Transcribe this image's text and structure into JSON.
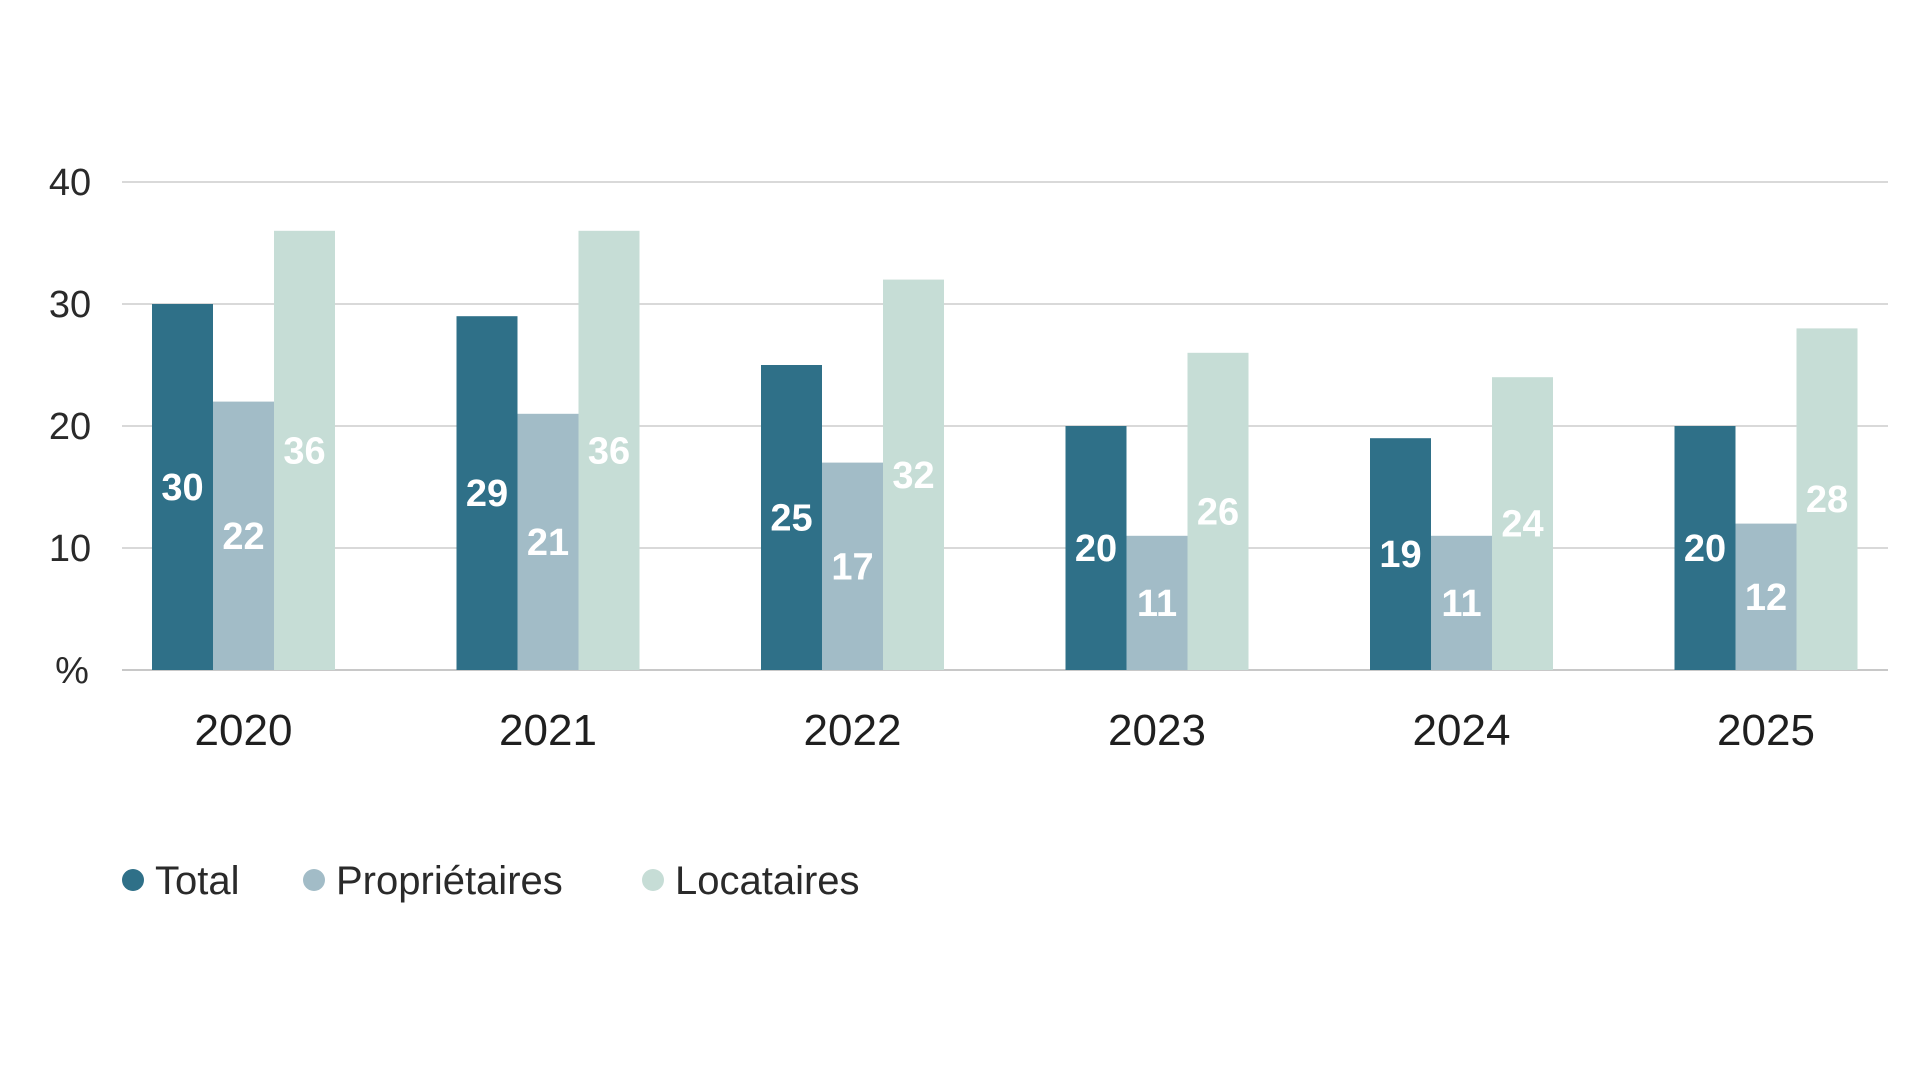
{
  "chart_data": {
    "type": "bar",
    "title": "",
    "xlabel": "",
    "ylabel": "%",
    "ylim": [
      0,
      40
    ],
    "yticks": [
      10,
      20,
      30,
      40
    ],
    "grid": true,
    "legend_position": "bottom-left",
    "categories": [
      "2020",
      "2021",
      "2022",
      "2023",
      "2024",
      "2025"
    ],
    "series": [
      {
        "name": "Total",
        "color": "#2f7088",
        "values": [
          30,
          29,
          25,
          20,
          19,
          20
        ]
      },
      {
        "name": "Propriétaires",
        "color": "#a2bcc7",
        "values": [
          22,
          21,
          17,
          11,
          11,
          12
        ]
      },
      {
        "name": "Locataires",
        "color": "#c6ddd6",
        "values": [
          36,
          36,
          32,
          26,
          24,
          28
        ]
      }
    ]
  }
}
